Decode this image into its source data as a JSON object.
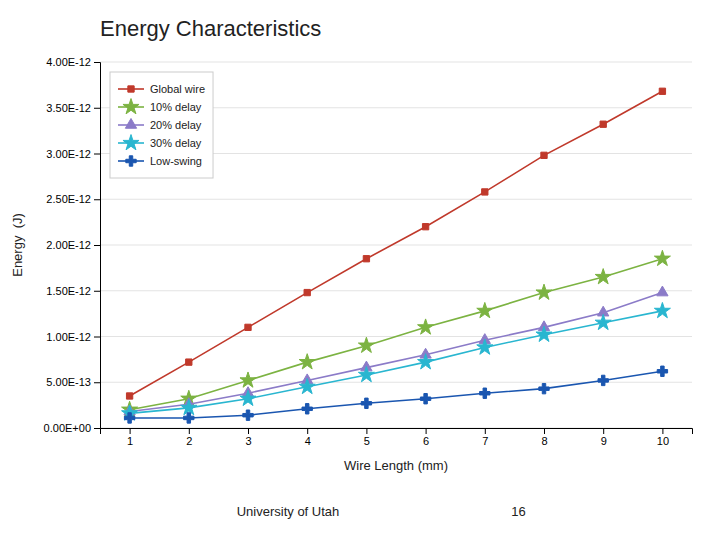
{
  "chart_data": {
    "type": "line",
    "title": "Energy Characteristics",
    "x_label": "Wire Length (mm)",
    "y_label": "Energy  (J)",
    "annotations": [
      "University of Utah",
      "16"
    ],
    "x": [
      1,
      2,
      3,
      4,
      5,
      6,
      7,
      8,
      9,
      10
    ],
    "series": [
      {
        "name": "Global wire",
        "color": "#c0392b",
        "marker": "square",
        "values": [
          3.5e-13,
          7.2e-13,
          1.1e-12,
          1.48e-12,
          1.85e-12,
          2.2e-12,
          2.58e-12,
          2.98e-12,
          3.32e-12,
          3.68e-12
        ]
      },
      {
        "name": "10% delay",
        "color": "#7cb342",
        "marker": "star",
        "values": [
          2e-13,
          3.2e-13,
          5.2e-13,
          7.2e-13,
          9e-13,
          1.1e-12,
          1.28e-12,
          1.48e-12,
          1.65e-12,
          1.85e-12
        ]
      },
      {
        "name": "20% delay",
        "color": "#8b7bc8",
        "marker": "triangle",
        "values": [
          1.8e-13,
          2.6e-13,
          3.8e-13,
          5.2e-13,
          6.6e-13,
          8e-13,
          9.6e-13,
          1.1e-12,
          1.26e-12,
          1.48e-12
        ]
      },
      {
        "name": "30% delay",
        "color": "#29b6d0",
        "marker": "star",
        "values": [
          1.6e-13,
          2.2e-13,
          3.2e-13,
          4.5e-13,
          5.8e-13,
          7.2e-13,
          8.8e-13,
          1.02e-12,
          1.15e-12,
          1.28e-12
        ]
      },
      {
        "name": "Low-swing",
        "color": "#1a56b0",
        "marker": "plus",
        "values": [
          1.1e-13,
          1.1e-13,
          1.4e-13,
          2.1e-13,
          2.7e-13,
          3.2e-13,
          3.8e-13,
          4.3e-13,
          5.2e-13,
          6.2e-13
        ]
      }
    ],
    "xlim": [
      0.5,
      10.5
    ],
    "xticks": [
      1,
      2,
      3,
      4,
      5,
      6,
      7,
      8,
      9,
      10
    ],
    "ylim": [
      0,
      4e-12
    ],
    "yticks": [
      {
        "value": 0,
        "label": "0.00E+00"
      },
      {
        "value": 5e-13,
        "label": "5.00E-13"
      },
      {
        "value": 1e-12,
        "label": "1.00E-12"
      },
      {
        "value": 1.5e-12,
        "label": "1.50E-12"
      },
      {
        "value": 2e-12,
        "label": "2.00E-12"
      },
      {
        "value": 2.5e-12,
        "label": "2.50E-12"
      },
      {
        "value": 3e-12,
        "label": "3.00E-12"
      },
      {
        "value": 3.5e-12,
        "label": "3.50E-12"
      },
      {
        "value": 4e-12,
        "label": "4.00E-12"
      }
    ],
    "grid": true,
    "legend": "upper left"
  }
}
